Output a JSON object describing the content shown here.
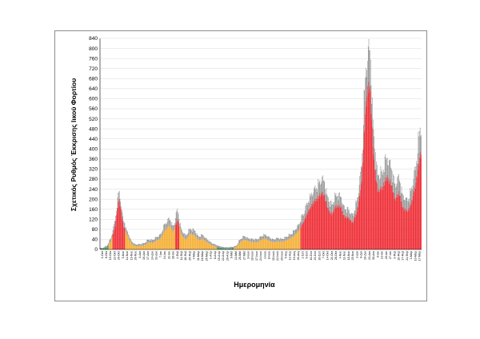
{
  "chart_data": {
    "type": "bar",
    "ylabel": "Σχετικός Ρυθμός Έκκρισης Ιικού Φορτίου",
    "xlabel": "Ημερομηνία",
    "ylim": [
      0,
      840
    ],
    "yticks": [
      0,
      40,
      80,
      120,
      160,
      200,
      240,
      280,
      320,
      360,
      400,
      440,
      480,
      520,
      560,
      600,
      640,
      680,
      720,
      760,
      800,
      840
    ],
    "grid": "horizontal",
    "error_bars": true,
    "colors": {
      "low": "#2e8b57",
      "medium": "#f4a824",
      "high": "#ee1c25",
      "error_bar": "#808080"
    },
    "categories": [
      "1-Οκτ",
      "8-Οκτ",
      "15-Οκτ",
      "22-Οκτ",
      "29-Οκτ",
      "5-Νοε",
      "12-Νοε",
      "19-Νοε",
      "26-Νοε",
      "3-Δεκ",
      "10-Δεκ",
      "17-Δεκ",
      "24-Δεκ",
      "31-Δεκ",
      "7-Ιαν",
      "14-Ιαν",
      "21-Ιαν",
      "28-Ιαν",
      "4-Φεβ",
      "11-Φεβ",
      "18-Φεβ",
      "25-Φεβ",
      "4-Μαρ",
      "11-Μαρ",
      "18-Μαρ",
      "25-Μαρ",
      "1-Απρ",
      "8-Απρ",
      "15-Απρ",
      "22-Απρ",
      "29-Απρ",
      "6-Μαϊ",
      "13-Μαϊ",
      "20-Μαϊ",
      "27-Μαϊ",
      "3-Ιουν",
      "10-Ιουν",
      "17-Ιουν",
      "24-Ιουν",
      "1-Ιουλ",
      "8-Ιουλ",
      "15-Ιουλ",
      "22-Ιουλ",
      "29-Ιουλ",
      "5-Αυγ",
      "12-Αυγ",
      "19-Αυγ",
      "26-Αυγ",
      "2-Σεπ",
      "9-Σεπ",
      "16-Σεπ",
      "23-Σεπ",
      "30-Σεπ",
      "7-Οκτ",
      "14-Οκτ",
      "21-Οκτ",
      "28-Οκτ",
      "4-Νοε",
      "11-Νοε",
      "18-Νοε",
      "25-Νοε",
      "2-Δεκ",
      "9-Δεκ",
      "16-Δεκ",
      "23-Δεκ",
      "30-Δεκ",
      "6-Ιαν",
      "13-Ιαν",
      "20-Ιαν",
      "27-Ιαν",
      "3-Φεβ",
      "10-Φεβ",
      "17-Φεβ",
      "24-Φεβ",
      "3-Μαρ",
      "10-Μαρ",
      "17-Μαρ"
    ],
    "values": [
      3,
      8,
      30,
      90,
      205,
      95,
      55,
      22,
      12,
      14,
      16,
      28,
      26,
      35,
      45,
      78,
      95,
      70,
      120,
      55,
      40,
      62,
      58,
      38,
      42,
      30,
      18,
      12,
      8,
      5,
      4,
      6,
      8,
      28,
      40,
      32,
      30,
      28,
      38,
      44,
      34,
      28,
      32,
      30,
      36,
      44,
      55,
      75,
      105,
      140,
      175,
      195,
      215,
      225,
      160,
      140,
      175,
      170,
      130,
      125,
      105,
      155,
      255,
      560,
      680,
      350,
      230,
      245,
      285,
      270,
      200,
      225,
      165,
      150,
      185,
      260,
      370
    ],
    "levels": [
      "low",
      "low",
      "medium",
      "high",
      "high",
      "high",
      "medium",
      "medium",
      "medium",
      "medium",
      "medium",
      "medium",
      "medium",
      "medium",
      "medium",
      "medium",
      "medium",
      "medium",
      "high",
      "medium",
      "medium",
      "medium",
      "medium",
      "medium",
      "medium",
      "medium",
      "medium",
      "medium",
      "low",
      "low",
      "low",
      "low",
      "medium",
      "medium",
      "medium",
      "medium",
      "medium",
      "medium",
      "medium",
      "medium",
      "medium",
      "medium",
      "medium",
      "medium",
      "medium",
      "medium",
      "medium",
      "medium",
      "high",
      "high",
      "high",
      "high",
      "high",
      "high",
      "high",
      "high",
      "high",
      "high",
      "high",
      "high",
      "high",
      "high",
      "high",
      "high",
      "high",
      "high",
      "high",
      "high",
      "high",
      "high",
      "high",
      "high",
      "high",
      "high",
      "high",
      "high",
      "high"
    ],
    "errors": [
      2,
      4,
      10,
      20,
      30,
      22,
      14,
      8,
      6,
      6,
      7,
      10,
      10,
      12,
      14,
      22,
      26,
      20,
      35,
      18,
      14,
      18,
      18,
      12,
      14,
      10,
      8,
      6,
      4,
      3,
      3,
      3,
      4,
      10,
      12,
      10,
      10,
      10,
      12,
      14,
      12,
      10,
      12,
      10,
      12,
      14,
      18,
      22,
      30,
      38,
      42,
      45,
      50,
      55,
      40,
      36,
      42,
      40,
      32,
      30,
      28,
      40,
      60,
      130,
      140,
      90,
      60,
      60,
      75,
      70,
      55,
      60,
      45,
      42,
      50,
      65,
      95
    ]
  }
}
